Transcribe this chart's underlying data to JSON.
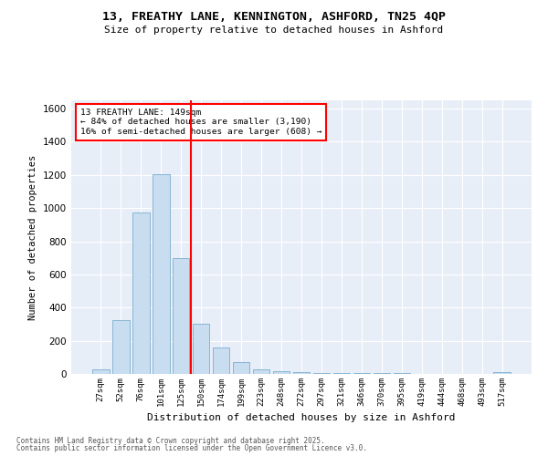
{
  "title_line1": "13, FREATHY LANE, KENNINGTON, ASHFORD, TN25 4QP",
  "title_line2": "Size of property relative to detached houses in Ashford",
  "xlabel": "Distribution of detached houses by size in Ashford",
  "ylabel": "Number of detached properties",
  "categories": [
    "27sqm",
    "52sqm",
    "76sqm",
    "101sqm",
    "125sqm",
    "150sqm",
    "174sqm",
    "199sqm",
    "223sqm",
    "248sqm",
    "272sqm",
    "297sqm",
    "321sqm",
    "346sqm",
    "370sqm",
    "395sqm",
    "419sqm",
    "444sqm",
    "468sqm",
    "493sqm",
    "517sqm"
  ],
  "values": [
    25,
    325,
    975,
    1205,
    700,
    305,
    160,
    70,
    25,
    15,
    12,
    5,
    5,
    5,
    5,
    5,
    0,
    0,
    0,
    0,
    10
  ],
  "bar_color": "#c8ddf0",
  "bar_edge_color": "#7aadcf",
  "vline_color": "red",
  "vline_x": 4.5,
  "ylim": [
    0,
    1650
  ],
  "yticks": [
    0,
    200,
    400,
    600,
    800,
    1000,
    1200,
    1400,
    1600
  ],
  "annotation_title": "13 FREATHY LANE: 149sqm",
  "annotation_line1": "← 84% of detached houses are smaller (3,190)",
  "annotation_line2": "16% of semi-detached houses are larger (608) →",
  "bg_color": "#e8eef8",
  "grid_color": "white",
  "footer_line1": "Contains HM Land Registry data © Crown copyright and database right 2025.",
  "footer_line2": "Contains public sector information licensed under the Open Government Licence v3.0."
}
